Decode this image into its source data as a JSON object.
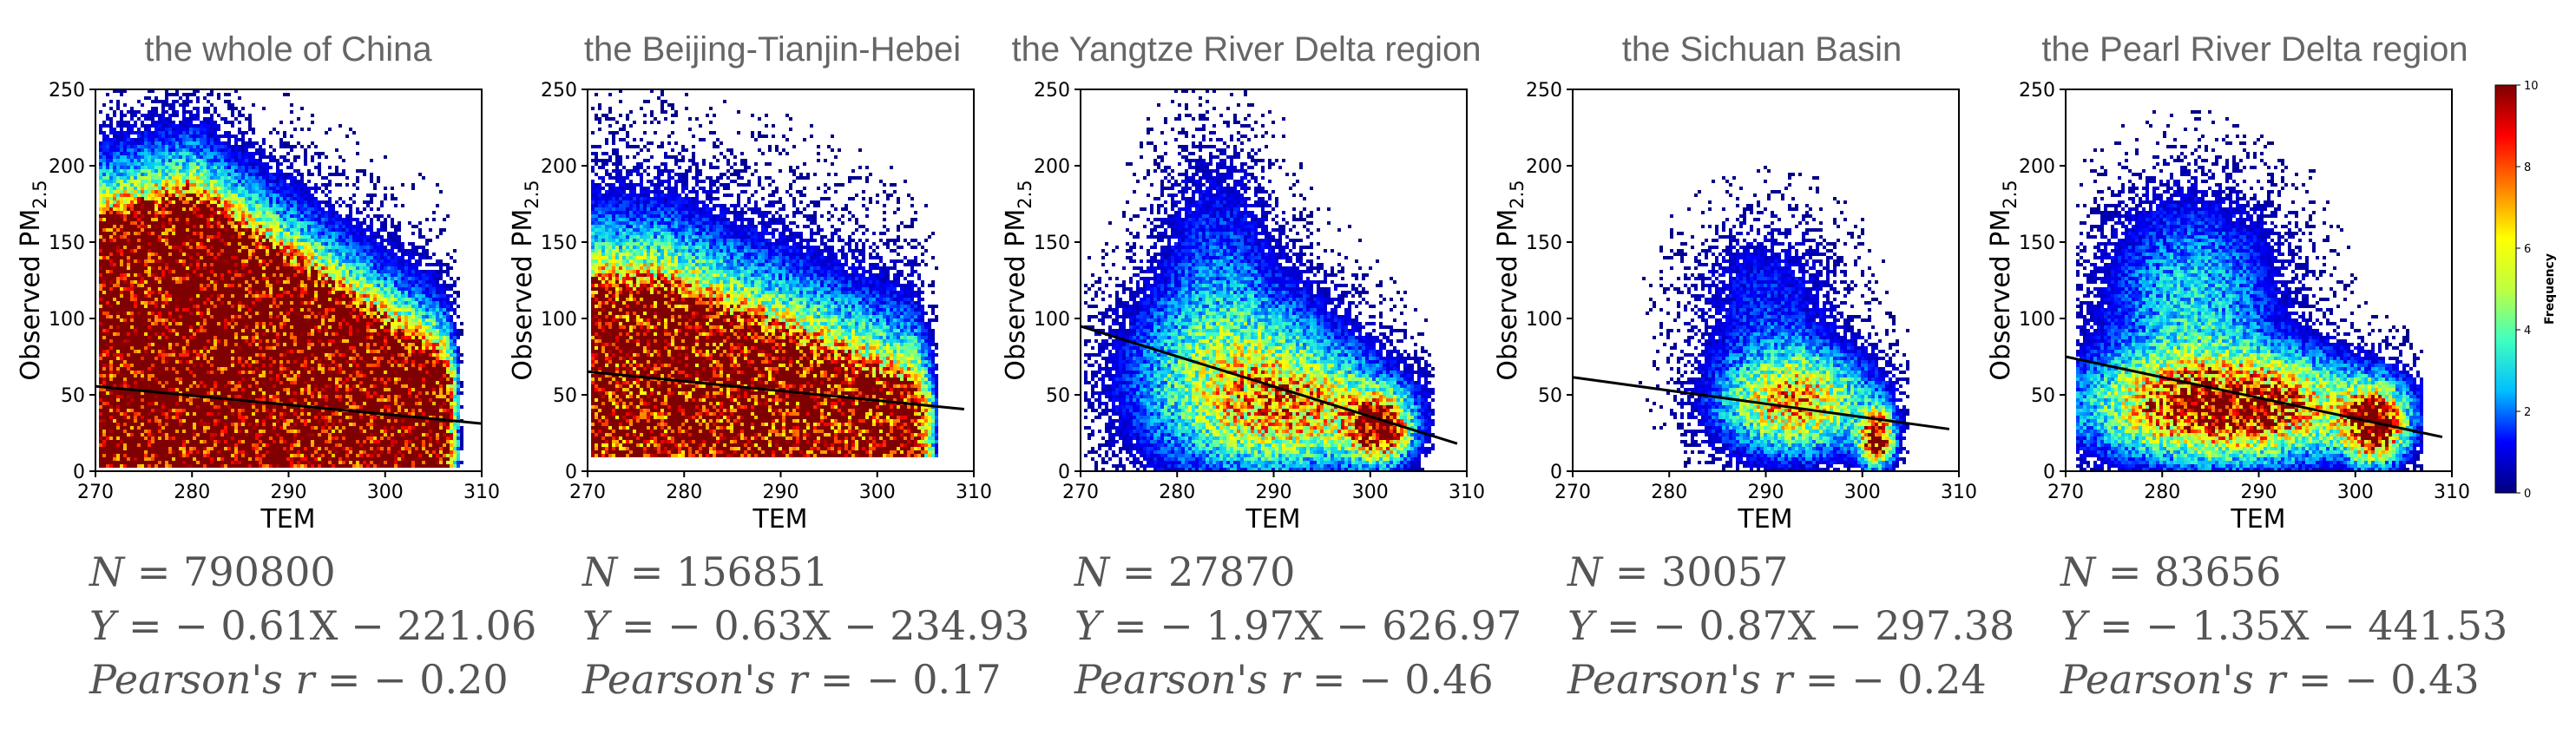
{
  "chart_data": [
    {
      "type": "heatmap",
      "title": "the whole of China",
      "xlabel": "TEM",
      "ylabel_main": "Observed PM",
      "ylabel_sub": "2.5",
      "xlim": [
        270,
        310
      ],
      "ylim": [
        0,
        250
      ],
      "xticks": [
        "270",
        "280",
        "290",
        "300",
        "310"
      ],
      "yticks": [
        "0",
        "50",
        "100",
        "150",
        "200",
        "250"
      ],
      "regression": {
        "x": [
          270,
          310
        ],
        "y": [
          55.6,
          31.2
        ]
      },
      "stats": {
        "n_label": "N",
        "n_value": "790800",
        "eq_lhs": "Y",
        "eq_rhs": "− 0.61X − 221.06",
        "r_label": "Pearson's r",
        "r_value": "− 0.20"
      }
    },
    {
      "type": "heatmap",
      "title": "the Beijing-Tianjin-Hebei",
      "xlabel": "TEM",
      "ylabel_main": "Observed PM",
      "ylabel_sub": "2.5",
      "xlim": [
        270,
        310
      ],
      "ylim": [
        0,
        250
      ],
      "xticks": [
        "270",
        "280",
        "290",
        "300",
        "310"
      ],
      "yticks": [
        "0",
        "50",
        "100",
        "150",
        "200",
        "250"
      ],
      "regression": {
        "x": [
          270,
          309
        ],
        "y": [
          65.2,
          40.6
        ]
      },
      "stats": {
        "n_label": "N",
        "n_value": "156851",
        "eq_lhs": "Y",
        "eq_rhs": "− 0.63X − 234.93",
        "r_label": "Pearson's r",
        "r_value": "− 0.17"
      }
    },
    {
      "type": "heatmap",
      "title": "the Yangtze River Delta region",
      "xlabel": "TEM",
      "ylabel_main": "Observed PM",
      "ylabel_sub": "2.5",
      "xlim": [
        270,
        310
      ],
      "ylim": [
        0,
        250
      ],
      "xticks": [
        "270",
        "280",
        "290",
        "300",
        "310"
      ],
      "yticks": [
        "0",
        "50",
        "100",
        "150",
        "200",
        "250"
      ],
      "regression": {
        "x": [
          270,
          309
        ],
        "y": [
          94.9,
          18.1
        ]
      },
      "stats": {
        "n_label": "N",
        "n_value": "27870",
        "eq_lhs": "Y",
        "eq_rhs": "− 1.97X − 626.97",
        "r_label": "Pearson's r",
        "r_value": "− 0.46"
      }
    },
    {
      "type": "heatmap",
      "title": "the Sichuan Basin",
      "xlabel": "TEM",
      "ylabel_main": "Observed PM",
      "ylabel_sub": "2.5",
      "xlim": [
        270,
        310
      ],
      "ylim": [
        0,
        250
      ],
      "xticks": [
        "270",
        "280",
        "290",
        "300",
        "310"
      ],
      "yticks": [
        "0",
        "50",
        "100",
        "150",
        "200",
        "250"
      ],
      "regression": {
        "x": [
          270,
          309
        ],
        "y": [
          61.5,
          27.6
        ]
      },
      "stats": {
        "n_label": "N",
        "n_value": "30057",
        "eq_lhs": "Y",
        "eq_rhs": "− 0.87X − 297.38",
        "r_label": "Pearson's r",
        "r_value": "− 0.24"
      }
    },
    {
      "type": "heatmap",
      "title": "the Pearl River Delta region",
      "xlabel": "TEM",
      "ylabel_main": "Observed PM",
      "ylabel_sub": "2.5",
      "xlim": [
        270,
        310
      ],
      "ylim": [
        0,
        250
      ],
      "xticks": [
        "270",
        "280",
        "290",
        "300",
        "310"
      ],
      "yticks": [
        "0",
        "50",
        "100",
        "150",
        "200",
        "250"
      ],
      "regression": {
        "x": [
          270,
          309
        ],
        "y": [
          75.0,
          22.4
        ]
      },
      "stats": {
        "n_label": "N",
        "n_value": "83656",
        "eq_lhs": "Y",
        "eq_rhs": "− 1.35X − 441.53",
        "r_label": "Pearson's r",
        "r_value": "− 0.43"
      }
    }
  ],
  "colorbar": {
    "label": "Frequency",
    "range": [
      0,
      10
    ],
    "ticks": [
      "0",
      "2",
      "4",
      "6",
      "8",
      "10"
    ],
    "stops": [
      "#00007f",
      "#0000ff",
      "#00bfff",
      "#40ffbf",
      "#bfff40",
      "#ffff00",
      "#ff7f00",
      "#ff0000",
      "#7f0000"
    ]
  }
}
